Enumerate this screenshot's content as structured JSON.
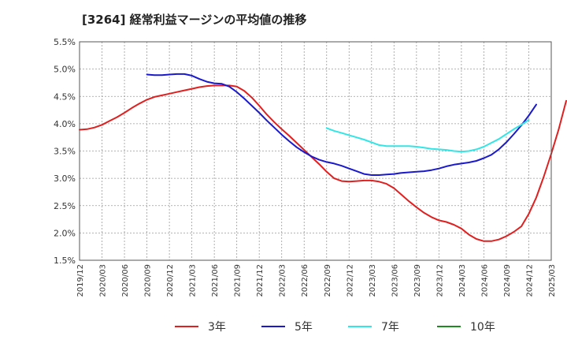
{
  "chart_data": {
    "type": "line",
    "title": "[3264]  経常利益マージンの平均値の推移",
    "xlabel": "",
    "ylabel": "",
    "ylim": [
      1.5,
      5.5
    ],
    "y_ticks": [
      "5.5%",
      "5.0%",
      "4.5%",
      "4.0%",
      "3.5%",
      "3.0%",
      "2.5%",
      "2.0%",
      "1.5%"
    ],
    "x_ticks": [
      "2019/12",
      "2020/03",
      "2020/06",
      "2020/09",
      "2020/12",
      "2021/03",
      "2021/06",
      "2021/09",
      "2021/12",
      "2022/03",
      "2022/06",
      "2022/09",
      "2022/12",
      "2023/03",
      "2023/06",
      "2023/09",
      "2023/12",
      "2024/03",
      "2024/06",
      "2024/09",
      "2024/12",
      "2025/03"
    ],
    "grid": true,
    "legend_position": "bottom",
    "series": [
      {
        "name": "3年",
        "color": "#e02020",
        "values": [
          {
            "x": "2019/12",
            "y": 3.89
          },
          {
            "x": "2020/01",
            "y": 3.9
          },
          {
            "x": "2020/02",
            "y": 3.93
          },
          {
            "x": "2020/03",
            "y": 3.98
          },
          {
            "x": "2020/04",
            "y": 4.05
          },
          {
            "x": "2020/05",
            "y": 4.12
          },
          {
            "x": "2020/06",
            "y": 4.2
          },
          {
            "x": "2020/07",
            "y": 4.29
          },
          {
            "x": "2020/08",
            "y": 4.37
          },
          {
            "x": "2020/09",
            "y": 4.44
          },
          {
            "x": "2020/10",
            "y": 4.49
          },
          {
            "x": "2020/11",
            "y": 4.52
          },
          {
            "x": "2020/12",
            "y": 4.55
          },
          {
            "x": "2021/01",
            "y": 4.58
          },
          {
            "x": "2021/02",
            "y": 4.61
          },
          {
            "x": "2021/03",
            "y": 4.64
          },
          {
            "x": "2021/04",
            "y": 4.67
          },
          {
            "x": "2021/05",
            "y": 4.69
          },
          {
            "x": "2021/06",
            "y": 4.7
          },
          {
            "x": "2021/07",
            "y": 4.7
          },
          {
            "x": "2021/08",
            "y": 4.7
          },
          {
            "x": "2021/09",
            "y": 4.68
          },
          {
            "x": "2021/10",
            "y": 4.6
          },
          {
            "x": "2021/11",
            "y": 4.48
          },
          {
            "x": "2021/12",
            "y": 4.33
          },
          {
            "x": "2022/01",
            "y": 4.17
          },
          {
            "x": "2022/02",
            "y": 4.03
          },
          {
            "x": "2022/03",
            "y": 3.9
          },
          {
            "x": "2022/04",
            "y": 3.78
          },
          {
            "x": "2022/05",
            "y": 3.65
          },
          {
            "x": "2022/06",
            "y": 3.52
          },
          {
            "x": "2022/07",
            "y": 3.39
          },
          {
            "x": "2022/08",
            "y": 3.26
          },
          {
            "x": "2022/09",
            "y": 3.12
          },
          {
            "x": "2022/10",
            "y": 3.0
          },
          {
            "x": "2022/11",
            "y": 2.95
          },
          {
            "x": "2022/12",
            "y": 2.94
          },
          {
            "x": "2023/01",
            "y": 2.95
          },
          {
            "x": "2023/02",
            "y": 2.96
          },
          {
            "x": "2023/03",
            "y": 2.96
          },
          {
            "x": "2023/04",
            "y": 2.94
          },
          {
            "x": "2023/05",
            "y": 2.9
          },
          {
            "x": "2023/06",
            "y": 2.82
          },
          {
            "x": "2023/07",
            "y": 2.7
          },
          {
            "x": "2023/08",
            "y": 2.58
          },
          {
            "x": "2023/09",
            "y": 2.47
          },
          {
            "x": "2023/10",
            "y": 2.37
          },
          {
            "x": "2023/11",
            "y": 2.29
          },
          {
            "x": "2023/12",
            "y": 2.23
          },
          {
            "x": "2024/01",
            "y": 2.2
          },
          {
            "x": "2024/02",
            "y": 2.15
          },
          {
            "x": "2024/03",
            "y": 2.08
          },
          {
            "x": "2024/04",
            "y": 1.97
          },
          {
            "x": "2024/05",
            "y": 1.89
          },
          {
            "x": "2024/06",
            "y": 1.85
          },
          {
            "x": "2024/07",
            "y": 1.85
          },
          {
            "x": "2024/08",
            "y": 1.88
          },
          {
            "x": "2024/09",
            "y": 1.94
          },
          {
            "x": "2024/10",
            "y": 2.02
          },
          {
            "x": "2024/11",
            "y": 2.12
          },
          {
            "x": "2024/12",
            "y": 2.35
          },
          {
            "x": "2025/01",
            "y": 2.65
          },
          {
            "x": "2025/02",
            "y": 3.03
          },
          {
            "x": "2025/03",
            "y": 3.45
          },
          {
            "x": "2025/04",
            "y": 3.9
          },
          {
            "x": "2025/05",
            "y": 4.42
          }
        ]
      },
      {
        "name": "5年",
        "color": "#1a1acc",
        "values": [
          {
            "x": "2020/09",
            "y": 4.9
          },
          {
            "x": "2020/10",
            "y": 4.89
          },
          {
            "x": "2020/11",
            "y": 4.89
          },
          {
            "x": "2020/12",
            "y": 4.9
          },
          {
            "x": "2021/01",
            "y": 4.91
          },
          {
            "x": "2021/02",
            "y": 4.91
          },
          {
            "x": "2021/03",
            "y": 4.88
          },
          {
            "x": "2021/04",
            "y": 4.82
          },
          {
            "x": "2021/05",
            "y": 4.77
          },
          {
            "x": "2021/06",
            "y": 4.74
          },
          {
            "x": "2021/07",
            "y": 4.73
          },
          {
            "x": "2021/08",
            "y": 4.68
          },
          {
            "x": "2021/09",
            "y": 4.58
          },
          {
            "x": "2021/10",
            "y": 4.46
          },
          {
            "x": "2021/11",
            "y": 4.33
          },
          {
            "x": "2021/12",
            "y": 4.2
          },
          {
            "x": "2022/01",
            "y": 4.06
          },
          {
            "x": "2022/02",
            "y": 3.93
          },
          {
            "x": "2022/03",
            "y": 3.8
          },
          {
            "x": "2022/04",
            "y": 3.68
          },
          {
            "x": "2022/05",
            "y": 3.57
          },
          {
            "x": "2022/06",
            "y": 3.48
          },
          {
            "x": "2022/07",
            "y": 3.4
          },
          {
            "x": "2022/08",
            "y": 3.34
          },
          {
            "x": "2022/09",
            "y": 3.3
          },
          {
            "x": "2022/10",
            "y": 3.27
          },
          {
            "x": "2022/11",
            "y": 3.23
          },
          {
            "x": "2022/12",
            "y": 3.18
          },
          {
            "x": "2023/01",
            "y": 3.13
          },
          {
            "x": "2023/02",
            "y": 3.08
          },
          {
            "x": "2023/03",
            "y": 3.06
          },
          {
            "x": "2023/04",
            "y": 3.06
          },
          {
            "x": "2023/05",
            "y": 3.07
          },
          {
            "x": "2023/06",
            "y": 3.08
          },
          {
            "x": "2023/07",
            "y": 3.1
          },
          {
            "x": "2023/08",
            "y": 3.11
          },
          {
            "x": "2023/09",
            "y": 3.12
          },
          {
            "x": "2023/10",
            "y": 3.13
          },
          {
            "x": "2023/11",
            "y": 3.15
          },
          {
            "x": "2023/12",
            "y": 3.18
          },
          {
            "x": "2024/01",
            "y": 3.22
          },
          {
            "x": "2024/02",
            "y": 3.25
          },
          {
            "x": "2024/03",
            "y": 3.27
          },
          {
            "x": "2024/04",
            "y": 3.29
          },
          {
            "x": "2024/05",
            "y": 3.32
          },
          {
            "x": "2024/06",
            "y": 3.37
          },
          {
            "x": "2024/07",
            "y": 3.43
          },
          {
            "x": "2024/08",
            "y": 3.53
          },
          {
            "x": "2024/09",
            "y": 3.66
          },
          {
            "x": "2024/10",
            "y": 3.81
          },
          {
            "x": "2024/11",
            "y": 3.97
          },
          {
            "x": "2024/12",
            "y": 4.15
          },
          {
            "x": "2025/01",
            "y": 4.35
          }
        ]
      },
      {
        "name": "7年",
        "color": "#33e5e5",
        "values": [
          {
            "x": "2022/09",
            "y": 3.92
          },
          {
            "x": "2022/10",
            "y": 3.87
          },
          {
            "x": "2022/11",
            "y": 3.83
          },
          {
            "x": "2022/12",
            "y": 3.79
          },
          {
            "x": "2023/01",
            "y": 3.75
          },
          {
            "x": "2023/02",
            "y": 3.71
          },
          {
            "x": "2023/03",
            "y": 3.66
          },
          {
            "x": "2023/04",
            "y": 3.61
          },
          {
            "x": "2023/05",
            "y": 3.59
          },
          {
            "x": "2023/06",
            "y": 3.59
          },
          {
            "x": "2023/07",
            "y": 3.59
          },
          {
            "x": "2023/08",
            "y": 3.59
          },
          {
            "x": "2023/09",
            "y": 3.58
          },
          {
            "x": "2023/10",
            "y": 3.56
          },
          {
            "x": "2023/11",
            "y": 3.54
          },
          {
            "x": "2023/12",
            "y": 3.53
          },
          {
            "x": "2024/01",
            "y": 3.52
          },
          {
            "x": "2024/02",
            "y": 3.5
          },
          {
            "x": "2024/03",
            "y": 3.49
          },
          {
            "x": "2024/04",
            "y": 3.5
          },
          {
            "x": "2024/05",
            "y": 3.53
          },
          {
            "x": "2024/06",
            "y": 3.58
          },
          {
            "x": "2024/07",
            "y": 3.65
          },
          {
            "x": "2024/08",
            "y": 3.72
          },
          {
            "x": "2024/09",
            "y": 3.81
          },
          {
            "x": "2024/10",
            "y": 3.9
          },
          {
            "x": "2024/11",
            "y": 3.98
          },
          {
            "x": "2024/12",
            "y": 4.07
          }
        ]
      },
      {
        "name": "10年",
        "color": "#1f8a1f",
        "values": []
      }
    ]
  }
}
